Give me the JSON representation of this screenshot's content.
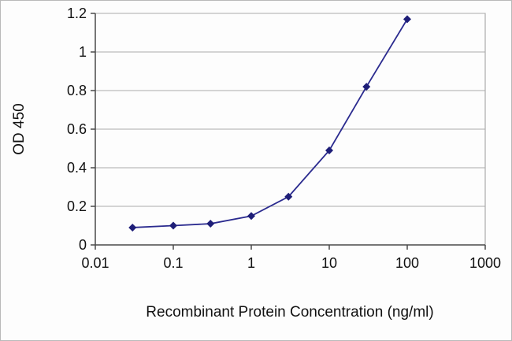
{
  "chart_data": {
    "type": "line",
    "title": "",
    "xlabel": "Recombinant Protein Concentration (ng/ml)",
    "ylabel": "OD 450",
    "x_scale": "log",
    "xlim": [
      0.01,
      1000
    ],
    "ylim": [
      0,
      1.2
    ],
    "x": [
      0.03,
      0.1,
      0.3,
      1,
      3,
      10,
      30,
      100
    ],
    "y": [
      0.09,
      0.1,
      0.11,
      0.15,
      0.25,
      0.49,
      0.82,
      1.17
    ],
    "x_ticks": [
      {
        "value": 0.01,
        "label": "0.01"
      },
      {
        "value": 0.1,
        "label": "0.1"
      },
      {
        "value": 1,
        "label": "1"
      },
      {
        "value": 10,
        "label": "10"
      },
      {
        "value": 100,
        "label": "100"
      },
      {
        "value": 1000,
        "label": "1000"
      }
    ],
    "y_ticks": [
      {
        "value": 0,
        "label": "0"
      },
      {
        "value": 0.2,
        "label": "0.2"
      },
      {
        "value": 0.4,
        "label": "0.4"
      },
      {
        "value": 0.6,
        "label": "0.6"
      },
      {
        "value": 0.8,
        "label": "0.8"
      },
      {
        "value": 1,
        "label": "1"
      },
      {
        "value": 1.2,
        "label": "1.2"
      }
    ],
    "grid": "horizontal",
    "legend": "none",
    "marker_shape": "diamond",
    "colors": {
      "line": "#2b2b8f",
      "marker": "#1e1e78",
      "grid": "#aaaaaa",
      "axis": "#4a4a4a",
      "plot_border": "#9a9a9a",
      "text": "#111111",
      "background": "#fdfdfd"
    }
  }
}
